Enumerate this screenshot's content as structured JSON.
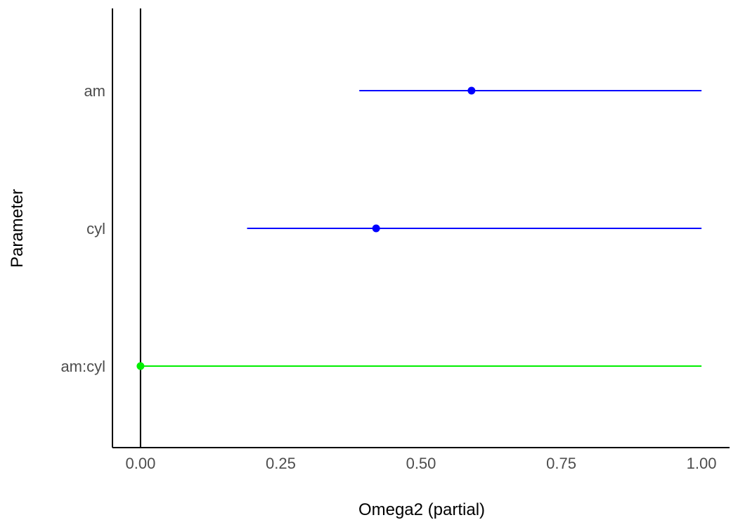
{
  "chart_data": {
    "type": "forest",
    "xlabel": "Omega2 (partial)",
    "ylabel": "Parameter",
    "xlim": [
      -0.05,
      1.05
    ],
    "x_ticks": [
      0.0,
      0.25,
      0.5,
      0.75,
      1.0
    ],
    "x_tick_labels": [
      "0.00",
      "0.25",
      "0.50",
      "0.75",
      "1.00"
    ],
    "reference_line_x": 0,
    "grid": false,
    "legend": "none",
    "parameters": [
      {
        "label": "am",
        "estimate": 0.59,
        "ci_low": 0.39,
        "ci_high": 1.0,
        "color": "#0000ff"
      },
      {
        "label": "cyl",
        "estimate": 0.42,
        "ci_low": 0.19,
        "ci_high": 1.0,
        "color": "#0000ff"
      },
      {
        "label": "am:cyl",
        "estimate": 0.0,
        "ci_low": 0.0,
        "ci_high": 1.0,
        "color": "#00ee00"
      }
    ]
  }
}
